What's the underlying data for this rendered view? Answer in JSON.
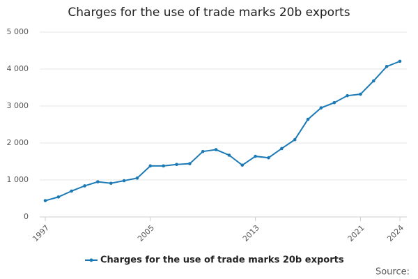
{
  "chart_data": {
    "type": "line",
    "title": "Charges for the use of trade marks 20b exports",
    "source": "Source:",
    "x": [
      1997,
      1998,
      1999,
      2000,
      2001,
      2002,
      2003,
      2004,
      2005,
      2006,
      2007,
      2008,
      2009,
      2010,
      2011,
      2012,
      2013,
      2014,
      2015,
      2016,
      2017,
      2018,
      2019,
      2020,
      2021,
      2022,
      2023,
      2024
    ],
    "series": [
      {
        "name": "Charges for the use of trade marks 20b exports",
        "color": "#1b7ab6",
        "values": [
          440,
          540,
          700,
          840,
          950,
          910,
          980,
          1050,
          1380,
          1380,
          1420,
          1440,
          1770,
          1820,
          1670,
          1400,
          1640,
          1600,
          1850,
          2090,
          2640,
          2950,
          3090,
          3280,
          3320,
          3680,
          4070,
          4210
        ]
      }
    ],
    "xlim": [
      1997,
      2024
    ],
    "xticks": [
      1997,
      2005,
      2013,
      2021,
      2024
    ],
    "ylim": [
      0,
      5000
    ],
    "yticks": [
      0,
      {
        "value": 1000,
        "label": "1 000"
      },
      {
        "value": 2000,
        "label": "2 000"
      },
      {
        "value": 3000,
        "label": "3 000"
      },
      {
        "value": 4000,
        "label": "4 000"
      },
      {
        "value": 5000,
        "label": "5 000"
      }
    ],
    "grid": true
  }
}
